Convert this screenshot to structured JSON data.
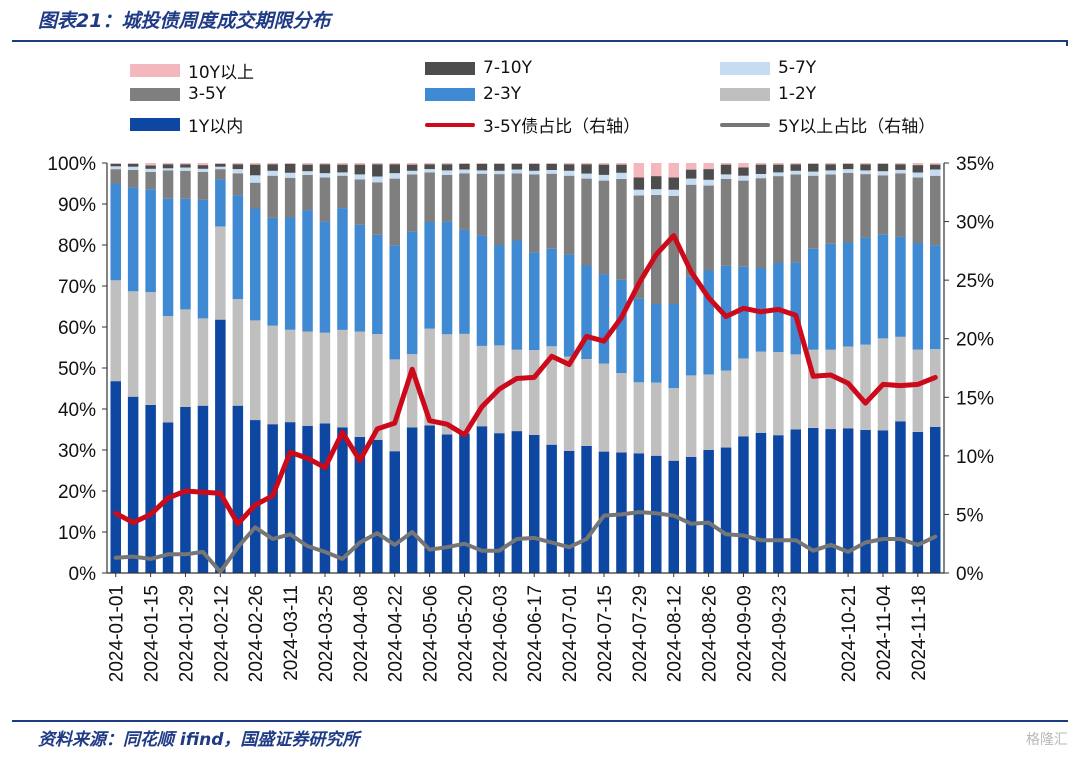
{
  "header": {
    "title": "图表21：城投债周度成交期限分布"
  },
  "footer": {
    "source": "资料来源：同花顺 ifind，国盛证券研究所",
    "watermark": "格隆汇"
  },
  "colors": {
    "y10plus": "#f3b8bd",
    "y7_10": "#4d4d4d",
    "y5_7": "#c6dcf2",
    "y3_5": "#7f7f7f",
    "y2_3": "#3f8ad2",
    "y1_2": "#bfbfbf",
    "y1in": "#0d47a1",
    "ratio35": "#cc0a1b",
    "ratio5plus": "#767676"
  },
  "legend": [
    {
      "key": "y10plus",
      "label": "10Y以上",
      "kind": "box"
    },
    {
      "key": "y7_10",
      "label": "7-10Y",
      "kind": "box"
    },
    {
      "key": "y5_7",
      "label": "5-7Y",
      "kind": "box"
    },
    {
      "key": "y3_5",
      "label": "3-5Y",
      "kind": "box"
    },
    {
      "key": "y2_3",
      "label": "2-3Y",
      "kind": "box"
    },
    {
      "key": "y1_2",
      "label": "1-2Y",
      "kind": "box"
    },
    {
      "key": "y1in",
      "label": "1Y以内",
      "kind": "box"
    },
    {
      "key": "ratio35",
      "label": "3-5Y债占比（右轴）",
      "kind": "line"
    },
    {
      "key": "ratio5plus",
      "label": "5Y以上占比（右轴）",
      "kind": "line"
    }
  ],
  "chart_data": {
    "type": "bar",
    "stacked": true,
    "x": [
      "2024-01-01",
      "2024-01-08",
      "2024-01-15",
      "2024-01-22",
      "2024-01-29",
      "2024-02-05",
      "2024-02-12",
      "2024-02-19",
      "2024-02-26",
      "2024-03-04",
      "2024-03-11",
      "2024-03-18",
      "2024-03-25",
      "2024-04-01",
      "2024-04-08",
      "2024-04-15",
      "2024-04-22",
      "2024-04-29",
      "2024-05-06",
      "2024-05-13",
      "2024-05-20",
      "2024-05-27",
      "2024-06-03",
      "2024-06-10",
      "2024-06-17",
      "2024-06-24",
      "2024-07-01",
      "2024-07-08",
      "2024-07-15",
      "2024-07-22",
      "2024-07-29",
      "2024-08-05",
      "2024-08-12",
      "2024-08-19",
      "2024-08-26",
      "2024-09-02",
      "2024-09-09",
      "2024-09-16",
      "2024-09-23",
      "2024-09-30",
      "2024-10-07",
      "2024-10-14",
      "2024-10-21",
      "2024-10-28",
      "2024-11-04",
      "2024-11-11",
      "2024-11-18",
      "2024-11-25"
    ],
    "tick_labels": [
      "2024-01-01",
      "2024-01-15",
      "2024-01-29",
      "2024-02-12",
      "2024-02-26",
      "2024-03-11",
      "2024-03-25",
      "2024-04-08",
      "2024-04-22",
      "2024-05-06",
      "2024-05-20",
      "2024-06-03",
      "2024-06-17",
      "2024-07-01",
      "2024-07-15",
      "2024-07-29",
      "2024-08-12",
      "2024-08-26",
      "2024-09-09",
      "2024-09-23",
      "2024-10-21",
      "2024-11-04",
      "2024-11-18"
    ],
    "tick_index": [
      0,
      2,
      4,
      6,
      8,
      10,
      12,
      14,
      16,
      18,
      20,
      22,
      24,
      26,
      28,
      30,
      32,
      34,
      36,
      38,
      42,
      44,
      46
    ],
    "ylim_left": [
      0,
      100
    ],
    "ylim_right": [
      0,
      35
    ],
    "left_ticks": [
      "0%",
      "10%",
      "20%",
      "30%",
      "40%",
      "50%",
      "60%",
      "70%",
      "80%",
      "90%",
      "100%"
    ],
    "right_ticks": [
      "0%",
      "5%",
      "10%",
      "15%",
      "20%",
      "25%",
      "30%",
      "35%"
    ],
    "bar_series": [
      {
        "key": "y1in",
        "name": "1Y以内",
        "values": [
          46.8,
          43.0,
          41.0,
          36.7,
          40.5,
          40.8,
          61.8,
          40.8,
          37.3,
          36.3,
          36.8,
          35.9,
          36.5,
          35.5,
          33.2,
          32.5,
          29.7,
          35.5,
          36.0,
          33.8,
          34.0,
          35.8,
          34.1,
          34.6,
          33.7,
          31.3,
          29.8,
          31.0,
          29.6,
          29.4,
          29.2,
          28.6,
          27.4,
          28.3,
          30.0,
          30.6,
          33.3,
          34.2,
          33.6,
          35.0,
          35.4,
          35.1,
          35.3,
          34.9,
          34.8,
          37.0,
          34.4,
          35.6
        ]
      },
      {
        "key": "y1_2",
        "name": "1-2Y",
        "values": [
          24.6,
          25.7,
          27.5,
          26.0,
          23.8,
          21.3,
          22.7,
          26.0,
          24.3,
          24.0,
          22.5,
          23.0,
          22.1,
          23.8,
          25.7,
          25.8,
          22.4,
          17.9,
          23.6,
          24.4,
          24.3,
          19.6,
          21.4,
          19.9,
          20.7,
          24.0,
          23.0,
          21.2,
          21.5,
          19.4,
          17.3,
          17.8,
          17.7,
          19.9,
          18.4,
          18.8,
          19.0,
          19.8,
          20.3,
          18.3,
          19.1,
          19.4,
          19.9,
          20.8,
          22.4,
          20.6,
          20.1,
          19.0
        ]
      },
      {
        "key": "y2_3",
        "name": "2-3Y",
        "values": [
          23.6,
          25.3,
          25.1,
          28.6,
          27.0,
          28.9,
          11.5,
          25.3,
          27.3,
          26.3,
          27.4,
          29.6,
          27.1,
          29.7,
          26.0,
          24.2,
          27.8,
          29.8,
          26.0,
          27.5,
          25.4,
          26.9,
          24.5,
          26.6,
          23.8,
          23.8,
          24.9,
          22.8,
          21.8,
          22.7,
          20.5,
          19.2,
          20.5,
          24.1,
          25.4,
          25.5,
          22.4,
          20.4,
          21.7,
          22.4,
          24.6,
          25.8,
          25.4,
          26.1,
          25.4,
          24.4,
          26.0,
          25.3
        ]
      },
      {
        "key": "y3_5",
        "name": "3-5Y",
        "values": [
          3.5,
          4.3,
          4.2,
          6.9,
          6.8,
          6.8,
          2.5,
          5.4,
          6.3,
          10.3,
          9.7,
          8.6,
          10.8,
          7.9,
          11.1,
          12.8,
          16.3,
          14.0,
          12.1,
          11.4,
          13.8,
          15.1,
          17.3,
          16.4,
          19.0,
          18.3,
          19.2,
          21.2,
          22.8,
          24.6,
          25.1,
          26.6,
          26.4,
          22.4,
          20.7,
          21.2,
          21.0,
          21.9,
          21.2,
          21.5,
          17.8,
          16.9,
          17.0,
          15.5,
          14.4,
          15.5,
          16.0,
          17.0
        ]
      },
      {
        "key": "y5_7",
        "name": "5-7Y",
        "values": [
          0.7,
          0.8,
          0.8,
          0.5,
          0.8,
          0.8,
          0.6,
          1.0,
          1.8,
          1.2,
          1.2,
          0.9,
          1.0,
          0.8,
          1.2,
          1.4,
          1.3,
          0.9,
          0.8,
          1.1,
          0.9,
          0.8,
          0.8,
          0.9,
          0.9,
          0.9,
          1.2,
          1.2,
          1.4,
          1.5,
          1.4,
          1.4,
          1.5,
          1.5,
          1.4,
          1.1,
          1.2,
          1.0,
          0.9,
          0.9,
          1.0,
          1.0,
          0.9,
          0.9,
          1.0,
          0.8,
          1.2,
          1.5
        ]
      },
      {
        "key": "y7_10",
        "name": "7-10Y",
        "values": [
          0.6,
          0.7,
          0.8,
          1.0,
          0.8,
          0.9,
          0.7,
          1.2,
          2.6,
          1.6,
          2.2,
          1.6,
          2.2,
          1.9,
          2.4,
          3.0,
          2.2,
          1.5,
          1.2,
          1.5,
          1.4,
          1.6,
          1.7,
          1.4,
          1.7,
          1.5,
          1.6,
          2.3,
          2.5,
          2.0,
          3.0,
          3.2,
          3.0,
          2.2,
          2.6,
          2.4,
          2.0,
          2.3,
          1.9,
          1.6,
          1.9,
          1.5,
          1.3,
          1.5,
          1.8,
          1.4,
          1.8,
          1.2
        ]
      },
      {
        "key": "y10plus",
        "name": "10Y以上",
        "values": [
          0.2,
          0.2,
          0.6,
          0.3,
          0.3,
          0.5,
          0.2,
          0.3,
          0.4,
          0.3,
          0.2,
          0.4,
          0.3,
          0.4,
          0.4,
          0.3,
          0.3,
          0.4,
          0.3,
          0.3,
          0.2,
          0.2,
          0.2,
          0.2,
          0.2,
          0.2,
          0.3,
          0.3,
          0.4,
          0.4,
          3.5,
          3.2,
          3.5,
          1.6,
          1.5,
          0.4,
          1.1,
          0.4,
          0.4,
          0.3,
          0.2,
          0.3,
          0.2,
          0.3,
          0.2,
          0.3,
          0.5,
          0.4
        ]
      }
    ],
    "line_series": [
      {
        "key": "ratio35",
        "name": "3-5Y债占比（右轴）",
        "axis": "right",
        "values": [
          5.1,
          4.3,
          5.0,
          6.4,
          7.0,
          6.9,
          6.8,
          4.2,
          5.8,
          6.6,
          10.3,
          9.8,
          9.0,
          12.0,
          9.6,
          12.3,
          12.8,
          17.4,
          13.0,
          12.7,
          11.8,
          14.2,
          15.7,
          16.6,
          16.7,
          18.5,
          17.8,
          20.2,
          19.8,
          21.8,
          24.7,
          27.2,
          28.8,
          25.7,
          23.5,
          21.9,
          22.6,
          22.3,
          22.5,
          22.0,
          16.8,
          16.9,
          16.2,
          14.5,
          16.1,
          16.0,
          16.1,
          16.7
        ]
      },
      {
        "key": "ratio5plus",
        "name": "5Y以上占比（右轴）",
        "axis": "right",
        "values": [
          1.3,
          1.4,
          1.2,
          1.6,
          1.6,
          1.8,
          0.1,
          2.2,
          3.9,
          2.9,
          3.3,
          2.3,
          1.8,
          1.2,
          2.6,
          3.4,
          2.4,
          3.5,
          2.0,
          2.2,
          2.5,
          1.9,
          1.9,
          2.9,
          3.0,
          2.6,
          2.2,
          2.9,
          4.9,
          5.0,
          5.2,
          5.1,
          4.9,
          4.2,
          4.3,
          3.3,
          3.2,
          2.8,
          2.8,
          2.8,
          1.9,
          2.4,
          1.8,
          2.6,
          2.9,
          2.9,
          2.4,
          3.1
        ]
      }
    ]
  }
}
